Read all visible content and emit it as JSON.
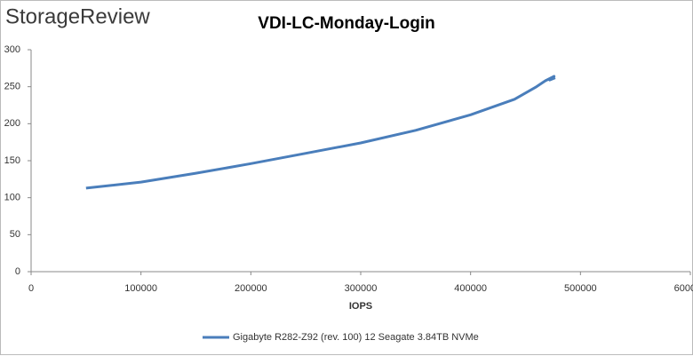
{
  "brand": "StorageReview",
  "chart_data": {
    "type": "line",
    "title": "VDI-LC-Monday-Login",
    "x_label": "IOPS",
    "series": [
      {
        "name": "Gigabyte R282-Z92 (rev. 100) 12 Seagate 3.84TB NVMe",
        "color": "#4a7ebb",
        "x": [
          50000,
          100000,
          150000,
          200000,
          250000,
          300000,
          350000,
          400000,
          440000,
          460000,
          468000,
          476000,
          472000,
          477000
        ],
        "values": [
          113,
          121,
          133,
          146,
          160,
          174,
          191,
          212,
          233,
          250,
          258,
          264,
          259,
          262
        ]
      }
    ],
    "xlim": [
      0,
      600000
    ],
    "xticks": [
      0,
      100000,
      200000,
      300000,
      400000,
      500000,
      600000
    ],
    "ylim": [
      0,
      300
    ],
    "yticks": [
      0,
      50,
      100,
      150,
      200,
      250,
      300
    ],
    "grid": false,
    "legend": "bottom"
  }
}
